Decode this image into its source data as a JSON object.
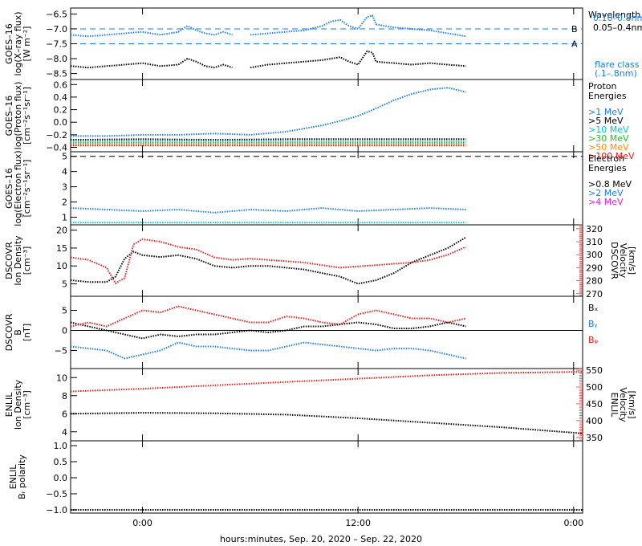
{
  "chart_data": {
    "type": "line",
    "colors": {
      "black": "#000000",
      "blue": "#1a7fe6",
      "cyan": "#00c8c8",
      "green": "#20c020",
      "orange": "#ff8c00",
      "red": "#e02020",
      "magenta": "#e020e0"
    },
    "x_axis": {
      "ticks": [
        "0:00",
        "12:00",
        "0:00"
      ],
      "label": "hours:minutes, Sep. 20, 2020 – Sep. 22, 2020",
      "range_hours": [
        -4,
        24.5
      ],
      "tick_hours": [
        0,
        12,
        24
      ]
    },
    "panels": [
      {
        "id": "xray",
        "ylabel": [
          "GOES–16",
          "log(X–ray flux)",
          "[W m⁻²]"
        ],
        "ylim": [
          -8.7,
          -6.3
        ],
        "yticks": [
          -6.5,
          -7.0,
          -7.5,
          -8.0,
          -8.5
        ],
        "ytick_labels": [
          "−6.5",
          "−7.0",
          "−7.5",
          "−8.0",
          "−8.5"
        ],
        "reference_lines": [
          {
            "y": -7.0,
            "label": "B"
          },
          {
            "y": -7.5,
            "label": "A"
          }
        ],
        "legend_title": [
          "Wavelength"
        ],
        "legend": [
          {
            "name": "0.10–0.8nm",
            "color": "#1a7fe6"
          },
          {
            "name": "0.05–0.4nm",
            "color": "#000000"
          }
        ],
        "legend_note": [
          "flare class",
          "(.1–.8nm)"
        ],
        "series": [
          {
            "color": "#1a7fe6",
            "x": [
              -4,
              -3,
              -2,
              -1,
              0,
              1,
              2,
              2.5,
              3,
              3.5,
              4,
              4.5,
              5,
              5.5,
              6,
              7,
              8,
              9,
              10,
              10.5,
              11,
              11.5,
              12,
              12.5,
              12.8,
              13,
              14,
              15,
              16,
              17,
              18
            ],
            "y": [
              -7.2,
              -7.25,
              -7.2,
              -7.15,
              -7.1,
              -7.2,
              -7.1,
              -6.9,
              -7.05,
              -7.15,
              -7.2,
              -7.1,
              -7.2,
              null,
              -7.2,
              -7.15,
              -7.1,
              -7.05,
              -6.9,
              -6.75,
              -6.7,
              -6.9,
              -7.0,
              -6.6,
              -6.55,
              -6.85,
              -6.95,
              -7.0,
              -7.05,
              -7.15,
              -7.25
            ]
          },
          {
            "color": "#000000",
            "x": [
              -4,
              -3,
              -2,
              -1,
              0,
              1,
              2,
              2.5,
              3,
              3.5,
              4,
              4.5,
              5,
              5.5,
              6,
              7,
              8,
              9,
              10,
              10.5,
              11,
              11.5,
              12,
              12.5,
              12.8,
              13,
              14,
              15,
              16,
              17,
              18
            ],
            "y": [
              -8.25,
              -8.3,
              -8.25,
              -8.2,
              -8.15,
              -8.25,
              -8.2,
              -8.0,
              -8.1,
              -8.25,
              -8.3,
              -8.2,
              -8.3,
              null,
              -8.3,
              -8.2,
              -8.15,
              -8.1,
              -8.05,
              -8.0,
              -7.95,
              -8.1,
              -8.2,
              -7.75,
              -7.8,
              -8.1,
              -8.15,
              -8.2,
              -8.15,
              -8.2,
              -8.25
            ]
          }
        ]
      },
      {
        "id": "proton",
        "ylabel": [
          "GOES–16",
          "log(Proton flux)",
          "[cm⁻²s⁻¹sr⁻¹]"
        ],
        "ylim": [
          -0.47,
          0.68
        ],
        "yticks": [
          0.6,
          0.4,
          0.2,
          0.0,
          -0.2,
          -0.4
        ],
        "ytick_labels": [
          "0.6",
          "0.4",
          "0.2",
          "0.0",
          "−0.2",
          "−0.4"
        ],
        "legend_title": [
          "Proton",
          "Energies"
        ],
        "legend": [
          {
            "name": ">1 MeV",
            "color": "#1a7fe6"
          },
          {
            "name": ">5 MeV",
            "color": "#000000"
          },
          {
            "name": ">10 MeV",
            "color": "#00c8c8"
          },
          {
            "name": ">30 MeV",
            "color": "#20c020"
          },
          {
            "name": ">50 MeV",
            "color": "#ff8c00"
          },
          {
            "name": ">100 MeV",
            "color": "#e02020"
          }
        ],
        "series": [
          {
            "color": "#1a7fe6",
            "x": [
              -4,
              -2,
              0,
              2,
              4,
              6,
              8,
              10,
              11,
              12,
              13,
              14,
              15,
              16,
              17,
              18
            ],
            "y": [
              -0.22,
              -0.22,
              -0.2,
              -0.2,
              -0.18,
              -0.2,
              -0.15,
              -0.05,
              0.02,
              0.1,
              0.22,
              0.35,
              0.45,
              0.52,
              0.55,
              0.48
            ]
          },
          {
            "color": "#000000",
            "x": [
              -4,
              0,
              4,
              8,
              12,
              16,
              18
            ],
            "y": [
              -0.28,
              -0.27,
              -0.28,
              -0.27,
              -0.27,
              -0.27,
              -0.27
            ]
          },
          {
            "color": "#00c8c8",
            "x": [
              -4,
              0,
              4,
              8,
              12,
              16,
              18
            ],
            "y": [
              -0.3,
              -0.3,
              -0.3,
              -0.3,
              -0.3,
              -0.3,
              -0.3
            ]
          },
          {
            "color": "#20c020",
            "x": [
              -4,
              0,
              4,
              8,
              12,
              16,
              18
            ],
            "y": [
              -0.33,
              -0.33,
              -0.33,
              -0.33,
              -0.33,
              -0.33,
              -0.33
            ]
          },
          {
            "color": "#ff8c00",
            "x": [
              -4,
              0,
              4,
              8,
              12,
              16,
              18
            ],
            "y": [
              -0.35,
              -0.35,
              -0.35,
              -0.35,
              -0.35,
              -0.35,
              -0.35
            ]
          },
          {
            "color": "#e02020",
            "x": [
              -4,
              0,
              4,
              8,
              12,
              16,
              18
            ],
            "y": [
              -0.37,
              -0.37,
              -0.37,
              -0.37,
              -0.37,
              -0.37,
              -0.37
            ]
          }
        ]
      },
      {
        "id": "electron",
        "ylabel": [
          "GOES–16",
          "log(Electron flux)",
          "[cm⁻²s⁻¹sr⁻¹]"
        ],
        "ylim": [
          0.5,
          5.3
        ],
        "yticks": [
          5,
          4,
          3,
          2,
          1
        ],
        "ytick_labels": [
          "5",
          "4",
          "3",
          "2",
          "1"
        ],
        "reference_lines": [
          {
            "y": 5.0,
            "label": ""
          }
        ],
        "legend_title": [
          "Electron",
          "Energies"
        ],
        "legend": [
          {
            "name": ">0.8 MeV",
            "color": "#000000"
          },
          {
            "name": ">2 MeV",
            "color": "#1a7fe6"
          },
          {
            "name": ">4 MeV",
            "color": "#e020e0"
          }
        ],
        "series": [
          {
            "color": "#1a7fe6",
            "x": [
              -4,
              -2,
              0,
              2,
              4,
              6,
              8,
              10,
              12,
              14,
              16,
              18
            ],
            "y": [
              1.6,
              1.5,
              1.4,
              1.5,
              1.3,
              1.5,
              1.4,
              1.6,
              1.4,
              1.5,
              1.6,
              1.5
            ]
          },
          {
            "color": "#00c8c8",
            "x": [
              -4,
              0,
              4,
              8,
              12,
              16,
              18
            ],
            "y": [
              0.65,
              0.65,
              0.65,
              0.65,
              0.65,
              0.65,
              0.65
            ]
          }
        ]
      },
      {
        "id": "dscovr_density",
        "ylabel": [
          "DSCOVR",
          "Ion Density",
          "[cm⁻³]"
        ],
        "ylim": [
          1.5,
          21.5
        ],
        "yticks": [
          20,
          15,
          10,
          5
        ],
        "ytick_labels": [
          "20",
          "15",
          "10",
          "5"
        ],
        "right_axis": {
          "label": [
            "DSCOVR",
            "Velocity",
            "[km/s]"
          ],
          "ylim": [
            268,
            323
          ],
          "yticks": [
            320,
            310,
            300,
            290,
            280,
            270
          ],
          "ytick_labels": [
            "320",
            "310",
            "300",
            "290",
            "280",
            "270"
          ],
          "color": "#e02020"
        },
        "series": [
          {
            "color": "#000000",
            "axis": "left",
            "x": [
              -4,
              -3,
              -2,
              -1.5,
              -1,
              -0.5,
              0,
              1,
              2,
              3,
              4,
              5,
              6,
              7,
              8,
              9,
              10,
              11,
              12,
              13,
              14,
              15,
              16,
              17,
              18
            ],
            "y": [
              6,
              5.5,
              5.5,
              7,
              12,
              14,
              13,
              12.5,
              13,
              12,
              10,
              9.5,
              10,
              10,
              9.5,
              9,
              8,
              7,
              5,
              6,
              8,
              11,
              13,
              15,
              18
            ]
          },
          {
            "color": "#e02020",
            "axis": "right",
            "x": [
              -4,
              -3,
              -2,
              -1.5,
              -1,
              -0.5,
              0,
              1,
              2,
              3,
              4,
              5,
              6,
              7,
              8,
              9,
              10,
              11,
              12,
              13,
              14,
              15,
              16,
              17,
              18
            ],
            "y": [
              298,
              296,
              290,
              278,
              282,
              308,
              312,
              310,
              306,
              304,
              298,
              296,
              297,
              296,
              295,
              294,
              292,
              290,
              291,
              292,
              293,
              294,
              296,
              300,
              306
            ]
          }
        ]
      },
      {
        "id": "dscovr_b",
        "ylabel": [
          "DSCOVR",
          "B",
          "[nT]"
        ],
        "ylim": [
          -9.5,
          8.5
        ],
        "yticks": [
          5,
          0,
          -5
        ],
        "ytick_labels": [
          "5",
          "0",
          "−5"
        ],
        "zero_line": true,
        "legend": [
          {
            "name": "Bₓ",
            "color": "#000000"
          },
          {
            "name": "Bᵧ",
            "color": "#1a7fe6"
          },
          {
            "name": "Bᵩ",
            "color": "#e02020"
          }
        ],
        "series": [
          {
            "color": "#000000",
            "x": [
              -4,
              -3,
              -2,
              -1,
              0,
              1,
              2,
              3,
              4,
              5,
              6,
              7,
              8,
              9,
              10,
              11,
              12,
              13,
              14,
              15,
              16,
              17,
              18
            ],
            "y": [
              2,
              1,
              0,
              -1,
              -2,
              -1,
              -1.5,
              -1,
              -1,
              -0.5,
              0,
              -0.5,
              0,
              1,
              1,
              1.5,
              2,
              1.5,
              0.5,
              0.5,
              1,
              2,
              1
            ]
          },
          {
            "color": "#1a7fe6",
            "x": [
              -4,
              -3,
              -2,
              -1,
              0,
              1,
              2,
              3,
              4,
              5,
              6,
              7,
              8,
              9,
              10,
              11,
              12,
              13,
              14,
              15,
              16,
              17,
              18
            ],
            "y": [
              -4,
              -4.5,
              -5,
              -7,
              -6,
              -5,
              -3,
              -4,
              -4,
              -4.5,
              -5,
              -5,
              -4,
              -3,
              -3.5,
              -4,
              -4.5,
              -5,
              -4.5,
              -4.5,
              -5,
              -6,
              -7
            ]
          },
          {
            "color": "#e02020",
            "x": [
              -4,
              -3,
              -2,
              -1,
              0,
              1,
              2,
              3,
              4,
              5,
              6,
              7,
              8,
              9,
              10,
              11,
              12,
              13,
              14,
              15,
              16,
              17,
              18
            ],
            "y": [
              1,
              2,
              1,
              3,
              5,
              4.5,
              6,
              5,
              4,
              3,
              2,
              2,
              3.5,
              3,
              2,
              1.5,
              4,
              5,
              4,
              3,
              3,
              2,
              3
            ]
          }
        ]
      },
      {
        "id": "enlil_density",
        "ylabel": [
          "ENLIL",
          "Ion Density",
          "[cm⁻³]"
        ],
        "ylim": [
          3,
          11
        ],
        "yticks": [
          10,
          8,
          6,
          4
        ],
        "ytick_labels": [
          "10",
          "8",
          "6",
          "4"
        ],
        "right_axis": {
          "label": [
            "ENLIL",
            "Velocity",
            "[km/s]"
          ],
          "ylim": [
            340,
            555
          ],
          "yticks": [
            550,
            500,
            450,
            400,
            350
          ],
          "ytick_labels": [
            "550",
            "500",
            "450",
            "400",
            "350"
          ],
          "color": "#e02020"
        },
        "series": [
          {
            "color": "#000000",
            "axis": "left",
            "x": [
              -4,
              0,
              4,
              8,
              12,
              16,
              20,
              24,
              24.5
            ],
            "y": [
              6.0,
              6.1,
              6.05,
              5.9,
              5.5,
              5.0,
              4.5,
              3.9,
              3.8
            ]
          },
          {
            "color": "#e02020",
            "axis": "right",
            "x": [
              -4,
              0,
              4,
              8,
              12,
              16,
              20,
              24,
              24.5
            ],
            "y": [
              487,
              495,
              505,
              515,
              525,
              535,
              542,
              545,
              545
            ]
          }
        ]
      },
      {
        "id": "enlil_polarity",
        "ylabel": [
          "ENLIL",
          "Bᵣ polarity"
        ],
        "ylim": [
          -1.1,
          1.15
        ],
        "yticks": [
          1.0,
          0.5,
          0.0,
          -0.5,
          -1.0
        ],
        "ytick_labels": [
          "1.0",
          "0.5",
          "0.0",
          "−0.5",
          "−1.0"
        ],
        "series": [
          {
            "color": "#000000",
            "x": [
              -4,
              24.5
            ],
            "y": [
              -1.0,
              -1.0
            ]
          }
        ]
      }
    ]
  }
}
